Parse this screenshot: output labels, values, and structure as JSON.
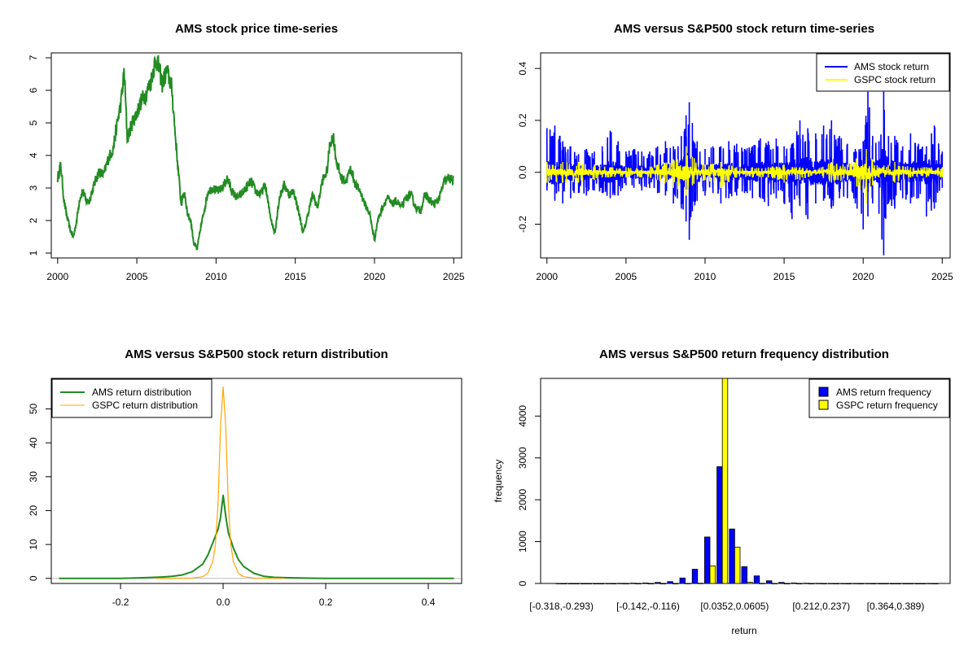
{
  "colors": {
    "ams_price": "#228B22",
    "ams_return": "#0000FF",
    "gspc_return": "#FFFF00",
    "ams_density": "#228B22",
    "gspc_density": "#FFA500",
    "axis": "#000000",
    "zero_line": "#BEBEBE"
  },
  "chart_data": [
    {
      "type": "line",
      "id": "price",
      "title": "AMS stock price time-series",
      "xlabel": "",
      "ylabel": "",
      "xlim": [
        1999.6,
        2025.5
      ],
      "ylim": [
        0.85,
        7.15
      ],
      "xticks": [
        2000,
        2005,
        2010,
        2015,
        2020,
        2025
      ],
      "xtick_labels": [
        "2000",
        "2005",
        "2010",
        "2015",
        "2020",
        "2025"
      ],
      "yticks": [
        1,
        2,
        3,
        4,
        5,
        6,
        7
      ],
      "ytick_labels": [
        "1",
        "2",
        "3",
        "4",
        "5",
        "6",
        "7"
      ],
      "series": [
        {
          "name": "AMS stock price",
          "color": "#228B22",
          "x": [
            2000.0,
            2000.2,
            2000.4,
            2000.6,
            2000.8,
            2001.0,
            2001.2,
            2001.4,
            2001.6,
            2001.8,
            2002.0,
            2002.3,
            2002.6,
            2002.9,
            2003.2,
            2003.5,
            2003.8,
            2004.0,
            2004.2,
            2004.4,
            2004.7,
            2005.0,
            2005.3,
            2005.6,
            2005.9,
            2006.1,
            2006.3,
            2006.6,
            2006.9,
            2007.2,
            2007.4,
            2007.6,
            2007.8,
            2008.0,
            2008.2,
            2008.4,
            2008.6,
            2008.8,
            2009.0,
            2009.2,
            2009.5,
            2009.8,
            2010.1,
            2010.4,
            2010.7,
            2011.0,
            2011.3,
            2011.6,
            2011.9,
            2012.2,
            2012.5,
            2012.8,
            2013.1,
            2013.4,
            2013.7,
            2014.0,
            2014.3,
            2014.6,
            2014.9,
            2015.2,
            2015.5,
            2015.8,
            2016.1,
            2016.4,
            2016.7,
            2017.0,
            2017.2,
            2017.4,
            2017.6,
            2017.9,
            2018.2,
            2018.5,
            2018.8,
            2019.1,
            2019.4,
            2019.7,
            2020.0,
            2020.2,
            2020.5,
            2020.8,
            2021.1,
            2021.4,
            2021.7,
            2022.0,
            2022.3,
            2022.6,
            2022.9,
            2023.2,
            2023.5,
            2023.8,
            2024.1,
            2024.4,
            2024.7,
            2025.0
          ],
          "y": [
            3.3,
            3.7,
            2.6,
            2.1,
            1.7,
            1.5,
            2.0,
            2.7,
            2.9,
            2.6,
            2.6,
            3.1,
            3.5,
            3.4,
            3.9,
            4.2,
            5.1,
            5.6,
            6.6,
            4.5,
            5.0,
            5.3,
            5.7,
            5.9,
            6.3,
            6.8,
            6.9,
            6.2,
            6.6,
            6.1,
            4.8,
            3.6,
            2.5,
            2.9,
            2.2,
            2.0,
            1.3,
            1.1,
            1.7,
            2.2,
            2.9,
            3.0,
            2.9,
            3.0,
            3.3,
            2.9,
            2.7,
            2.8,
            3.0,
            3.2,
            2.9,
            2.8,
            3.1,
            2.2,
            1.6,
            2.7,
            3.1,
            2.8,
            2.9,
            2.3,
            1.6,
            2.2,
            2.8,
            2.4,
            3.2,
            3.5,
            4.4,
            4.6,
            3.8,
            3.3,
            3.2,
            3.6,
            3.1,
            2.9,
            2.5,
            2.2,
            1.4,
            2.0,
            2.4,
            2.7,
            2.5,
            2.6,
            2.4,
            2.7,
            2.8,
            2.4,
            2.3,
            2.8,
            2.6,
            2.5,
            2.7,
            3.2,
            3.3,
            3.2
          ]
        }
      ]
    },
    {
      "type": "line",
      "id": "returns",
      "title": "AMS versus S&P500 stock return time-series",
      "xlabel": "",
      "ylabel": "",
      "xlim": [
        1999.6,
        2025.5
      ],
      "ylim": [
        -0.33,
        0.46
      ],
      "xticks": [
        2000,
        2005,
        2010,
        2015,
        2020,
        2025
      ],
      "xtick_labels": [
        "2000",
        "2005",
        "2010",
        "2015",
        "2020",
        "2025"
      ],
      "yticks": [
        -0.2,
        0.0,
        0.2,
        0.4
      ],
      "ytick_labels": [
        "-0.2",
        "0.0",
        "0.2",
        "0.4"
      ],
      "legend": {
        "position": "top-right",
        "entries": [
          "AMS stock return",
          "GSPC stock return"
        ]
      },
      "series": [
        {
          "name": "AMS stock return",
          "color": "#0000FF",
          "x": [
            2000.0,
            2000.5,
            2001.0,
            2001.5,
            2002.0,
            2002.5,
            2003.0,
            2003.5,
            2004.0,
            2004.5,
            2005.0,
            2005.5,
            2006.0,
            2006.5,
            2007.0,
            2007.5,
            2008.0,
            2008.5,
            2008.8,
            2009.0,
            2009.2,
            2009.5,
            2010.0,
            2010.5,
            2011.0,
            2011.5,
            2012.0,
            2012.5,
            2013.0,
            2013.5,
            2014.0,
            2014.5,
            2015.0,
            2015.5,
            2016.0,
            2016.5,
            2017.0,
            2017.5,
            2018.0,
            2018.5,
            2019.0,
            2019.5,
            2020.0,
            2020.3,
            2020.6,
            2021.0,
            2021.3,
            2021.6,
            2022.0,
            2022.5,
            2023.0,
            2023.5,
            2024.0,
            2024.5,
            2025.0
          ],
          "high": [
            0.17,
            0.18,
            0.12,
            0.1,
            0.07,
            0.09,
            0.08,
            0.1,
            0.16,
            0.12,
            0.08,
            0.09,
            0.08,
            0.08,
            0.1,
            0.12,
            0.1,
            0.14,
            0.22,
            0.27,
            0.19,
            0.12,
            0.09,
            0.1,
            0.1,
            0.12,
            0.11,
            0.09,
            0.1,
            0.13,
            0.12,
            0.13,
            0.1,
            0.11,
            0.2,
            0.17,
            0.15,
            0.18,
            0.2,
            0.14,
            0.11,
            0.09,
            0.12,
            0.31,
            0.14,
            0.12,
            0.31,
            0.14,
            0.14,
            0.1,
            0.15,
            0.11,
            0.1,
            0.18,
            0.08
          ],
          "low": [
            -0.07,
            -0.11,
            -0.12,
            -0.1,
            -0.08,
            -0.09,
            -0.07,
            -0.08,
            -0.1,
            -0.09,
            -0.05,
            -0.06,
            -0.07,
            -0.06,
            -0.08,
            -0.09,
            -0.12,
            -0.14,
            -0.19,
            -0.26,
            -0.15,
            -0.11,
            -0.09,
            -0.08,
            -0.12,
            -0.1,
            -0.09,
            -0.08,
            -0.1,
            -0.1,
            -0.13,
            -0.1,
            -0.12,
            -0.18,
            -0.13,
            -0.18,
            -0.12,
            -0.11,
            -0.14,
            -0.1,
            -0.1,
            -0.12,
            -0.22,
            -0.17,
            -0.12,
            -0.16,
            -0.32,
            -0.12,
            -0.14,
            -0.1,
            -0.12,
            -0.1,
            -0.17,
            -0.14,
            -0.06
          ]
        },
        {
          "name": "GSPC stock return",
          "color": "#FFFF00",
          "x": [
            2000.0,
            2001.0,
            2002.0,
            2003.0,
            2004.0,
            2005.0,
            2006.0,
            2007.0,
            2008.0,
            2008.8,
            2009.2,
            2010.0,
            2011.0,
            2012.0,
            2013.0,
            2014.0,
            2015.0,
            2016.0,
            2017.0,
            2018.0,
            2019.0,
            2020.2,
            2020.6,
            2021.0,
            2022.0,
            2023.0,
            2024.0,
            2025.0
          ],
          "high": [
            0.04,
            0.04,
            0.04,
            0.03,
            0.02,
            0.02,
            0.02,
            0.03,
            0.05,
            0.1,
            0.06,
            0.03,
            0.04,
            0.02,
            0.02,
            0.02,
            0.03,
            0.02,
            0.01,
            0.04,
            0.03,
            0.09,
            0.05,
            0.02,
            0.04,
            0.02,
            0.02,
            0.02
          ],
          "low": [
            -0.04,
            -0.04,
            -0.04,
            -0.03,
            -0.02,
            -0.02,
            -0.02,
            -0.03,
            -0.06,
            -0.09,
            -0.05,
            -0.03,
            -0.06,
            -0.02,
            -0.02,
            -0.02,
            -0.04,
            -0.03,
            -0.01,
            -0.04,
            -0.03,
            -0.12,
            -0.05,
            -0.02,
            -0.04,
            -0.02,
            -0.02,
            -0.02
          ]
        }
      ]
    },
    {
      "type": "line",
      "id": "density",
      "title": "AMS versus S&P500 stock return distribution",
      "xlabel": "",
      "ylabel": "",
      "xlim": [
        -0.335,
        0.465
      ],
      "ylim": [
        -1.5,
        59
      ],
      "xticks": [
        -0.2,
        0.0,
        0.2,
        0.4
      ],
      "xtick_labels": [
        "-0.2",
        "0.0",
        "0.2",
        "0.4"
      ],
      "yticks": [
        0,
        10,
        20,
        30,
        40,
        50
      ],
      "ytick_labels": [
        "0",
        "10",
        "20",
        "30",
        "40",
        "50"
      ],
      "legend": {
        "position": "top-left",
        "entries": [
          "AMS return distribution",
          "GSPC return distribution"
        ]
      },
      "series": [
        {
          "name": "AMS return distribution",
          "color": "#228B22",
          "x": [
            -0.32,
            -0.2,
            -0.15,
            -0.12,
            -0.1,
            -0.08,
            -0.06,
            -0.04,
            -0.03,
            -0.02,
            -0.01,
            -0.005,
            0.0,
            0.005,
            0.01,
            0.02,
            0.03,
            0.04,
            0.06,
            0.08,
            0.1,
            0.12,
            0.15,
            0.2,
            0.3,
            0.45
          ],
          "y": [
            0.0,
            0.0,
            0.2,
            0.4,
            0.6,
            1.0,
            2.0,
            4.2,
            6.8,
            10.5,
            14.5,
            18.0,
            24.5,
            18.5,
            13.5,
            9.0,
            5.5,
            3.5,
            1.5,
            0.6,
            0.3,
            0.2,
            0.1,
            0.0,
            0.0,
            0.0
          ]
        },
        {
          "name": "GSPC return distribution",
          "color": "#FFA500",
          "x": [
            -0.13,
            -0.06,
            -0.04,
            -0.03,
            -0.02,
            -0.015,
            -0.01,
            -0.005,
            0.0,
            0.005,
            0.01,
            0.015,
            0.02,
            0.03,
            0.04,
            0.06,
            0.12
          ],
          "y": [
            0.0,
            0.1,
            0.5,
            1.5,
            5.0,
            10.0,
            22.0,
            45.0,
            56.5,
            45.0,
            22.0,
            10.0,
            5.0,
            1.5,
            0.5,
            0.1,
            0.0
          ]
        }
      ]
    },
    {
      "type": "bar",
      "id": "frequency",
      "title": "AMS versus S&P500 return frequency distribution",
      "xlabel": "return",
      "ylabel": "frequency",
      "ylim": [
        0,
        4900
      ],
      "yticks": [
        0,
        1000,
        2000,
        3000,
        4000
      ],
      "ytick_labels": [
        "0",
        "1000",
        "2000",
        "3000",
        "4000"
      ],
      "xtick_labels": [
        "[-0.318,-0.293)",
        "[-0.142,-0.116)",
        "[0.0352,0.0605)",
        "[0.212,0.237)",
        "[0.364,0.389)"
      ],
      "xtick_bins": [
        0,
        7,
        14,
        21,
        27
      ],
      "bin_count": 31,
      "legend": {
        "position": "top-right",
        "entries": [
          "AMS return frequency",
          "GSPC return frequency"
        ]
      },
      "series": [
        {
          "name": "AMS return frequency",
          "color": "#0000FF",
          "values": [
            1,
            0,
            0,
            0,
            1,
            3,
            8,
            12,
            25,
            45,
            130,
            340,
            1110,
            2790,
            1300,
            400,
            180,
            65,
            25,
            12,
            6,
            4,
            2,
            1,
            1,
            1,
            0,
            0,
            0,
            0,
            1
          ]
        },
        {
          "name": "GSPC return frequency",
          "color": "#FFFF00",
          "values": [
            0,
            0,
            0,
            0,
            0,
            0,
            0,
            0,
            0,
            0,
            2,
            5,
            420,
            4900,
            870,
            30,
            4,
            1,
            0,
            0,
            0,
            0,
            0,
            0,
            0,
            0,
            0,
            0,
            0,
            0,
            0
          ]
        }
      ]
    }
  ]
}
